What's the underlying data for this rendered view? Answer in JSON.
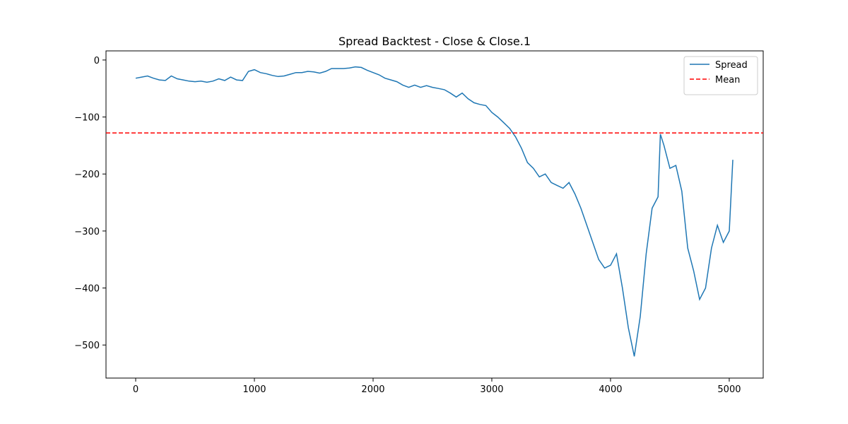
{
  "chart_data": {
    "type": "line",
    "title": "Spread Backtest - Close & Close.1",
    "x": [
      0,
      50,
      100,
      150,
      200,
      250,
      300,
      350,
      400,
      450,
      500,
      550,
      600,
      650,
      700,
      750,
      800,
      850,
      900,
      950,
      1000,
      1050,
      1100,
      1150,
      1200,
      1250,
      1300,
      1350,
      1400,
      1450,
      1500,
      1550,
      1600,
      1650,
      1700,
      1750,
      1800,
      1850,
      1900,
      1950,
      2000,
      2050,
      2100,
      2150,
      2200,
      2250,
      2300,
      2350,
      2400,
      2450,
      2500,
      2550,
      2600,
      2650,
      2700,
      2750,
      2800,
      2850,
      2900,
      2950,
      3000,
      3050,
      3100,
      3150,
      3200,
      3250,
      3300,
      3350,
      3400,
      3450,
      3500,
      3550,
      3600,
      3650,
      3700,
      3750,
      3800,
      3850,
      3900,
      3950,
      4000,
      4050,
      4100,
      4150,
      4200,
      4250,
      4300,
      4350,
      4400,
      4420,
      4450,
      4500,
      4550,
      4600,
      4650,
      4700,
      4750,
      4800,
      4850,
      4900,
      4950,
      5000,
      5030
    ],
    "series": [
      {
        "name": "Spread",
        "color": "#1f77b4",
        "dash": "solid",
        "values": [
          -32,
          -30,
          -28,
          -32,
          -35,
          -36,
          -28,
          -33,
          -35,
          -37,
          -38,
          -37,
          -39,
          -37,
          -33,
          -36,
          -30,
          -35,
          -36,
          -20,
          -17,
          -22,
          -24,
          -27,
          -29,
          -28,
          -25,
          -22,
          -22,
          -20,
          -21,
          -23,
          -20,
          -15,
          -15,
          -15,
          -14,
          -12,
          -13,
          -18,
          -22,
          -26,
          -32,
          -35,
          -38,
          -44,
          -48,
          -44,
          -48,
          -45,
          -48,
          -50,
          -52,
          -58,
          -65,
          -58,
          -68,
          -75,
          -78,
          -80,
          -92,
          -100,
          -110,
          -120,
          -135,
          -155,
          -180,
          -190,
          -205,
          -200,
          -215,
          -220,
          -225,
          -215,
          -235,
          -260,
          -290,
          -320,
          -350,
          -365,
          -360,
          -340,
          -400,
          -470,
          -520,
          -450,
          -340,
          -260,
          -240,
          -130,
          -150,
          -190,
          -185,
          -230,
          -330,
          -370,
          -420,
          -400,
          -330,
          -290,
          -320,
          -300,
          -175
        ]
      },
      {
        "name": "Mean",
        "color": "#ff0000",
        "dash": "dashed",
        "constant": -128
      }
    ],
    "xlim": [
      -250,
      5286
    ],
    "xticks": [
      0,
      1000,
      2000,
      3000,
      4000,
      5000
    ],
    "ylim": [
      -558,
      16
    ],
    "yticks": [
      0,
      {
        "value": -100,
        "label": "−100"
      },
      {
        "value": -200,
        "label": "−200"
      },
      {
        "value": -300,
        "label": "−300"
      },
      {
        "value": -400,
        "label": "−400"
      },
      {
        "value": -500,
        "label": "−500"
      }
    ],
    "legend": "upper right"
  }
}
